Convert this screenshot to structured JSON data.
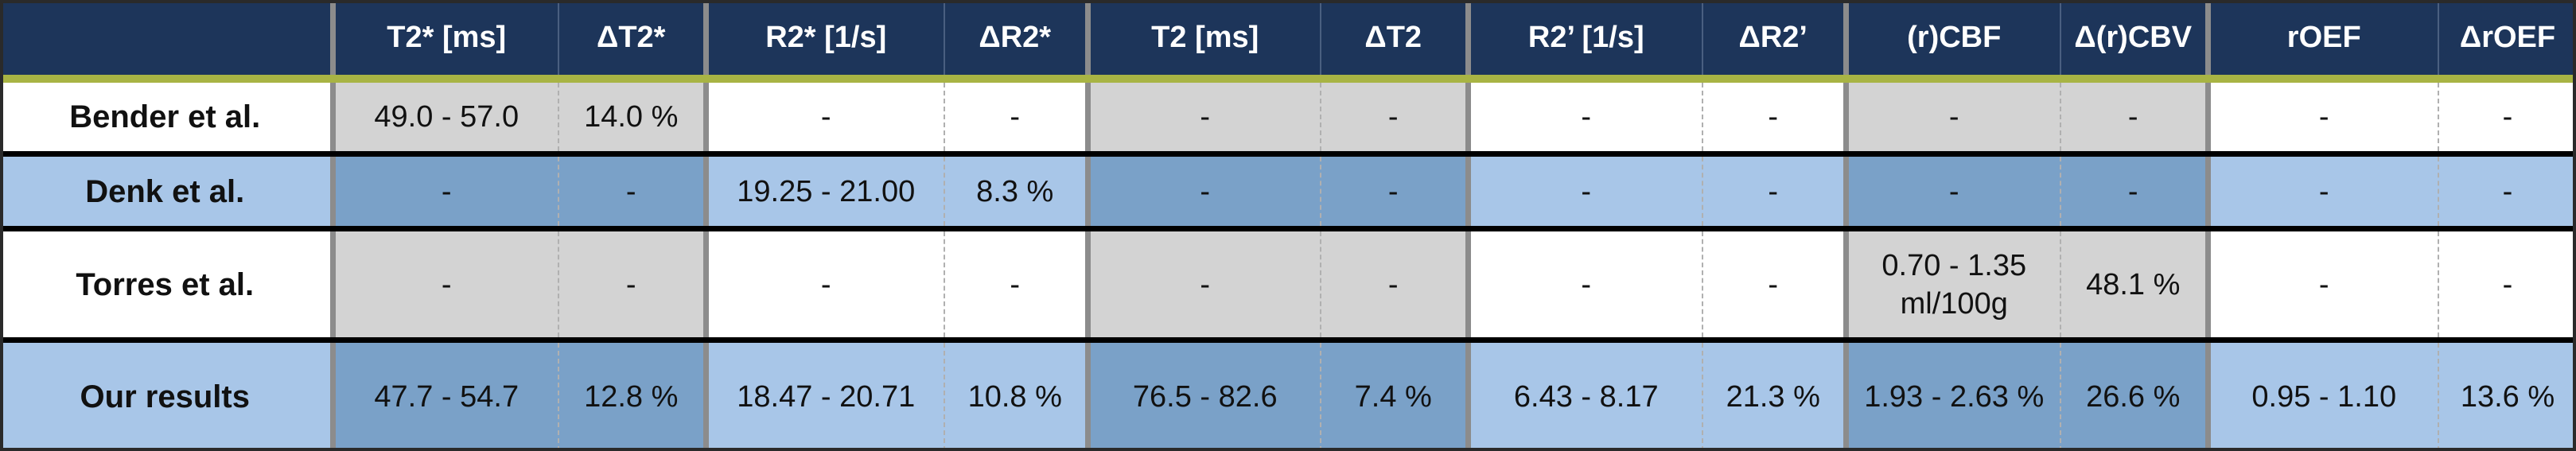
{
  "table": {
    "headers": [
      "",
      "T2* [ms]",
      "ΔT2*",
      "R2* [1/s]",
      "ΔR2*",
      "T2 [ms]",
      "ΔT2",
      "R2’ [1/s]",
      "ΔR2’",
      "(r)CBF",
      "Δ(r)CBV",
      "rOEF",
      "ΔrOEF"
    ],
    "rows": [
      {
        "label": "Bender et al.",
        "cells": [
          "49.0 - 57.0",
          "14.0 %",
          "-",
          "-",
          "-",
          "-",
          "-",
          "-",
          "-",
          "-",
          "-",
          "-"
        ]
      },
      {
        "label": "Denk et al.",
        "cells": [
          "-",
          "-",
          "19.25 - 21.00",
          "8.3 %",
          "-",
          "-",
          "-",
          "-",
          "-",
          "-",
          "-",
          "-"
        ]
      },
      {
        "label": "Torres et al.",
        "cells": [
          "-",
          "-",
          "-",
          "-",
          "-",
          "-",
          "-",
          "-",
          "0.70 - 1.35 ml/100g",
          "48.1 %",
          "-",
          "-"
        ]
      },
      {
        "label": "Our results",
        "cells": [
          "47.7 - 54.7",
          "12.8 %",
          "18.47 - 20.71",
          "10.8 %",
          "76.5 - 82.6",
          "7.4 %",
          "6.43 - 8.17",
          "21.3 %",
          "1.93 - 2.63 %",
          "26.6 %",
          "0.95 - 1.10",
          "13.6 %"
        ]
      }
    ]
  },
  "colors": {
    "header_bg": "#1d355a",
    "header_rule": "#a8b444",
    "gray_cell": "#d3d3d3",
    "light_blue": "#a8c6e8",
    "dark_blue": "#7aa1c8"
  }
}
